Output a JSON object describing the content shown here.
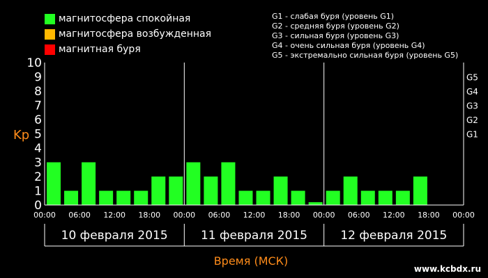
{
  "legend": {
    "items": [
      {
        "label": "магнитосфера спокойная",
        "color": "#22ff22"
      },
      {
        "label": "магнитосфера возбужденная",
        "color": "#ffb800"
      },
      {
        "label": "магнитная буря",
        "color": "#ff0000"
      }
    ]
  },
  "storm_legend": [
    "G1 - слабая буря (уровень G1)",
    "G2 - средняя буря (уровень G2)",
    "G3 - сильная буря (уровень G3)",
    "G4 - очень сильная буря (уровень G4)",
    "G5 - экстремально сильная буря (уровень G5)"
  ],
  "watermark": "www.kcbdx.ru",
  "colors": {
    "background": "#000000",
    "axis": "#ffffff",
    "accent_label": "#ff8c1a",
    "bar_quiet": "#22ff22"
  },
  "chart_data": {
    "type": "bar",
    "ylabel": "Kp",
    "xlabel": "Время (МСК)",
    "ylim": [
      0,
      10
    ],
    "y_ticks": [
      "0",
      "1",
      "2",
      "3",
      "4",
      "5",
      "6",
      "7",
      "8",
      "9",
      "10"
    ],
    "right_ticks": [
      {
        "value": 5,
        "label": "G1"
      },
      {
        "value": 6,
        "label": "G2"
      },
      {
        "value": 7,
        "label": "G3"
      },
      {
        "value": 8,
        "label": "G4"
      },
      {
        "value": 9,
        "label": "G5"
      }
    ],
    "x_tick_labels": [
      "00:00",
      "06:00",
      "12:00",
      "18:00",
      "00:00",
      "06:00",
      "12:00",
      "18:00",
      "00:00",
      "06:00",
      "12:00",
      "18:00",
      "00:00"
    ],
    "days": [
      "10 февраля 2015",
      "11 февраля 2015",
      "12 февраля 2015"
    ],
    "values": [
      3,
      1,
      3,
      1,
      1,
      1,
      2,
      2,
      3,
      2,
      3,
      1,
      1,
      2,
      1,
      0.2,
      1,
      2,
      1,
      1,
      1,
      2,
      null,
      null
    ],
    "grid": false
  }
}
